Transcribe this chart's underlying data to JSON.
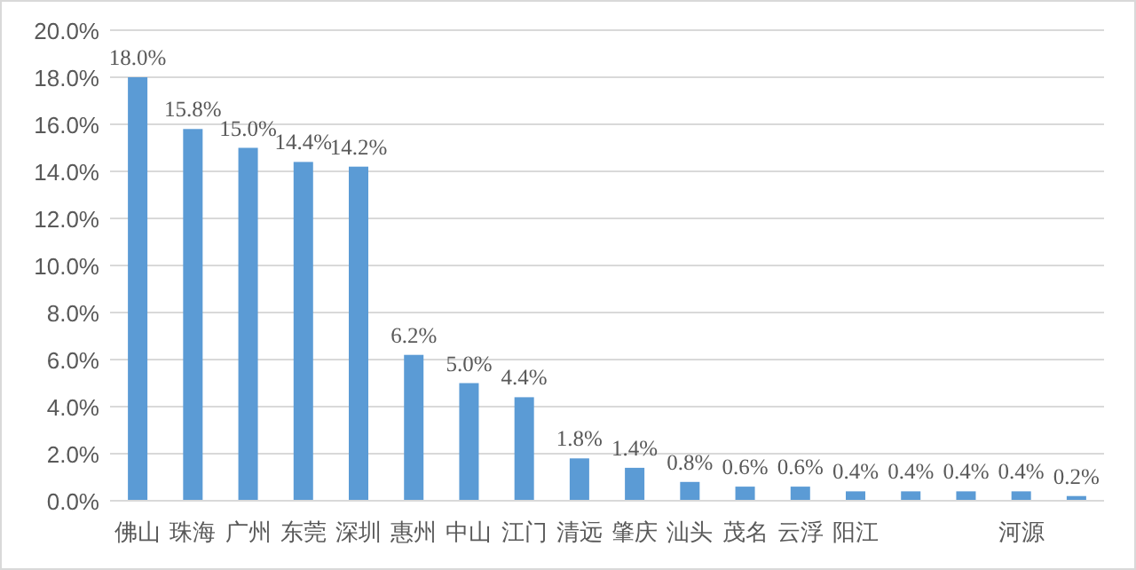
{
  "chart_data": {
    "type": "bar",
    "categories": [
      "佛山",
      "珠海",
      "广州",
      "东莞",
      "深圳",
      "惠州",
      "中山",
      "江门",
      "清远",
      "肇庆",
      "汕头",
      "茂名",
      "云浮",
      "阳江",
      null,
      null,
      "河源",
      null
    ],
    "values": [
      18.0,
      15.8,
      15.0,
      14.4,
      14.2,
      6.2,
      5.0,
      4.4,
      1.8,
      1.4,
      0.8,
      0.6,
      0.6,
      0.4,
      0.4,
      0.4,
      0.4,
      0.2
    ],
    "value_labels": [
      "18.0%",
      "15.8%",
      "15.0%",
      "14.4%",
      "14.2%",
      "6.2%",
      "5.0%",
      "4.4%",
      "1.8%",
      "1.4%",
      "0.8%",
      "0.6%",
      "0.6%",
      "0.4%",
      "0.4%",
      "0.4%",
      "0.4%",
      "0.2%"
    ],
    "color": "#5b9bd5",
    "ylim": [
      0,
      20
    ],
    "yticks": [
      {
        "value": 0,
        "label": "0.0%"
      },
      {
        "value": 2,
        "label": "2.0%"
      },
      {
        "value": 4,
        "label": "4.0%"
      },
      {
        "value": 6,
        "label": "6.0%"
      },
      {
        "value": 8,
        "label": "8.0%"
      },
      {
        "value": 10,
        "label": "10.0%"
      },
      {
        "value": 12,
        "label": "12.0%"
      },
      {
        "value": 14,
        "label": "14.0%"
      },
      {
        "value": 16,
        "label": "16.0%"
      },
      {
        "value": 18,
        "label": "18.0%"
      },
      {
        "value": 20,
        "label": "20.0%"
      }
    ],
    "grid": "y"
  }
}
